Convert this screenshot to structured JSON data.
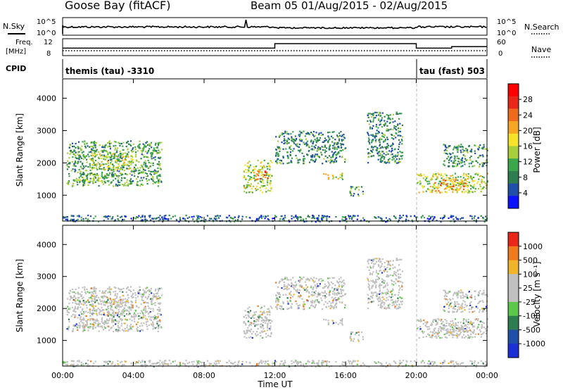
{
  "header": {
    "station": "Goose Bay (fitACF)",
    "beam_date": "Beam 05 01/Aug/2015 - 02/Aug/2015"
  },
  "nsky_panel": {
    "label": "N.Sky",
    "left_ticks": [
      "10^5",
      "10^0"
    ],
    "right_ticks": [
      "10^5",
      "10^0"
    ],
    "right_label": "N.Search"
  },
  "freq_panel": {
    "label_line1": "Freq.",
    "label_line2": "[MHz]",
    "left_ticks": [
      "12",
      "8"
    ],
    "right_ticks": [
      "60",
      "0"
    ],
    "right_label": "Nave"
  },
  "cpid_panel": {
    "label": "CPID",
    "segments": [
      {
        "text": "themis (tau) -3310",
        "start_hour": 0,
        "end_hour": 20
      },
      {
        "text": "tau (fast) 503",
        "start_hour": 20,
        "end_hour": 24
      }
    ]
  },
  "power_panel": {
    "ylabel": "Slant Range [km]",
    "y_ticks": [
      "4000",
      "3000",
      "2000",
      "1000"
    ],
    "colorbar_label": "Power [dB]",
    "colorbar_ticks": [
      "28",
      "24",
      "20",
      "16",
      "12",
      "8",
      "4"
    ],
    "colors": [
      "#0a12ff",
      "#1f4fa8",
      "#2e7d4f",
      "#3aa84a",
      "#a8cf3a",
      "#f7e22a",
      "#f5a623",
      "#f06a1e",
      "#e8261a",
      "#ff0000"
    ]
  },
  "velocity_panel": {
    "ylabel": "Slant Range [km]",
    "y_ticks": [
      "4000",
      "3000",
      "2000",
      "1000"
    ],
    "colorbar_label": "Velocity [m s⁻¹]",
    "colorbar_ticks": [
      "1000",
      "500",
      "100",
      "25",
      "-25",
      "-100",
      "-500",
      "-1000"
    ],
    "colors": [
      "#1a2fd6",
      "#1f4fa8",
      "#2e7d4f",
      "#5cc84a",
      "#c0c0c0",
      "#c0c0c0",
      "#f0b428",
      "#f07a1e",
      "#e8261a"
    ]
  },
  "x_axis": {
    "tick_labels": [
      "00:00",
      "04:00",
      "08:00",
      "12:00",
      "16:00",
      "20:00",
      "00:00"
    ],
    "label": "Time UT"
  },
  "chart_data": {
    "type": "heatmap",
    "title": "Goose Bay (fitACF)  Beam 05 01/Aug/2015 - 02/Aug/2015",
    "xlabel": "Time UT",
    "ylabel": "Slant Range [km]",
    "xlim": [
      0,
      24
    ],
    "ylim": [
      200,
      4600
    ],
    "power_range_db": [
      0,
      30
    ],
    "velocity_range": [
      -1000,
      1000
    ],
    "freq_mhz": [
      {
        "start_hour": 0,
        "end_hour": 12,
        "value": 10.5
      },
      {
        "start_hour": 12,
        "end_hour": 20,
        "value": 12
      },
      {
        "start_hour": 20,
        "end_hour": 22,
        "value": 10.5
      },
      {
        "start_hour": 22,
        "end_hour": 24,
        "value": 11
      }
    ],
    "cpid_change_hour": 20,
    "power_regions": [
      {
        "t0": 0.2,
        "t1": 5.6,
        "r0": 1300,
        "r1": 2700,
        "db": 10
      },
      {
        "t0": 1.5,
        "t1": 4.0,
        "r0": 1800,
        "r1": 2300,
        "db": 15
      },
      {
        "t0": 0.8,
        "t1": 2.5,
        "r0": 1400,
        "r1": 1700,
        "db": 12
      },
      {
        "t0": 10.2,
        "t1": 11.8,
        "r0": 1100,
        "r1": 2100,
        "db": 14
      },
      {
        "t0": 10.9,
        "t1": 11.6,
        "r0": 1500,
        "r1": 1800,
        "db": 22
      },
      {
        "t0": 12.0,
        "t1": 16.0,
        "r0": 2000,
        "r1": 3000,
        "db": 8
      },
      {
        "t0": 14.7,
        "t1": 15.8,
        "r0": 1500,
        "r1": 1700,
        "db": 16
      },
      {
        "t0": 16.2,
        "t1": 17.0,
        "r0": 1000,
        "r1": 1300,
        "db": 10
      },
      {
        "t0": 17.2,
        "t1": 19.2,
        "r0": 2000,
        "r1": 3600,
        "db": 8
      },
      {
        "t0": 20.0,
        "t1": 24.0,
        "r0": 1100,
        "r1": 1700,
        "db": 14
      },
      {
        "t0": 21.0,
        "t1": 22.8,
        "r0": 1100,
        "r1": 1500,
        "db": 20
      },
      {
        "t0": 21.5,
        "t1": 24.0,
        "r0": 1900,
        "r1": 2600,
        "db": 9
      },
      {
        "t0": 0.0,
        "t1": 24.0,
        "r0": 200,
        "r1": 400,
        "db": 6
      }
    ]
  }
}
